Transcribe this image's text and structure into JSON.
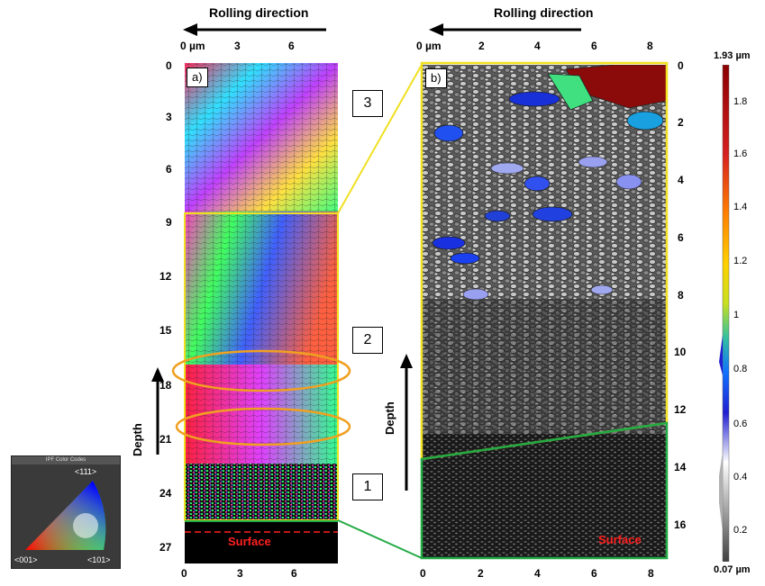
{
  "figure": {
    "rolling_direction_label": "Rolling direction",
    "depth_label": "Depth",
    "surface_label": "Surface",
    "panel_a_tag": "a)",
    "panel_b_tag": "b)",
    "region_labels": [
      "3",
      "2",
      "1"
    ],
    "colors": {
      "yellow_outline": "#f0e020",
      "green_outline": "#22aa44",
      "orange_ellipse": "#f0a020",
      "surface_dash": "#ff2020"
    }
  },
  "panel_a": {
    "x_unit": "0  µm",
    "x_ticks": [
      "3",
      "6"
    ],
    "x_bottom_ticks": [
      "0",
      "3",
      "6"
    ],
    "y_ticks": [
      "0",
      "3",
      "6",
      "9",
      "12",
      "15",
      "18",
      "21",
      "24",
      "27"
    ]
  },
  "panel_b": {
    "x_unit": "0  µm",
    "x_ticks": [
      "2",
      "4",
      "6",
      "8"
    ],
    "x_bottom_ticks": [
      "0",
      "2",
      "4",
      "6",
      "8"
    ],
    "y_ticks": [
      "0",
      "2",
      "4",
      "6",
      "8",
      "10",
      "12",
      "14",
      "16"
    ]
  },
  "colorbar": {
    "max_label": "1.93 µm",
    "min_label": "0.07 µm",
    "ticks": [
      "1.8",
      "1.6",
      "1.4",
      "1.2",
      "1",
      "0.8",
      "0.6",
      "0.4",
      "0.2"
    ],
    "stops": [
      "#8b0000",
      "#d62020",
      "#ff8000",
      "#ffd000",
      "#c8e020",
      "#30c0a0",
      "#1070ff",
      "#2020d0",
      "#ffffff",
      "#404040"
    ]
  },
  "ipf_key": {
    "title": "IPF Color Codes",
    "top_label": "<111>",
    "left_label": "<001>",
    "right_label": "<101>"
  }
}
